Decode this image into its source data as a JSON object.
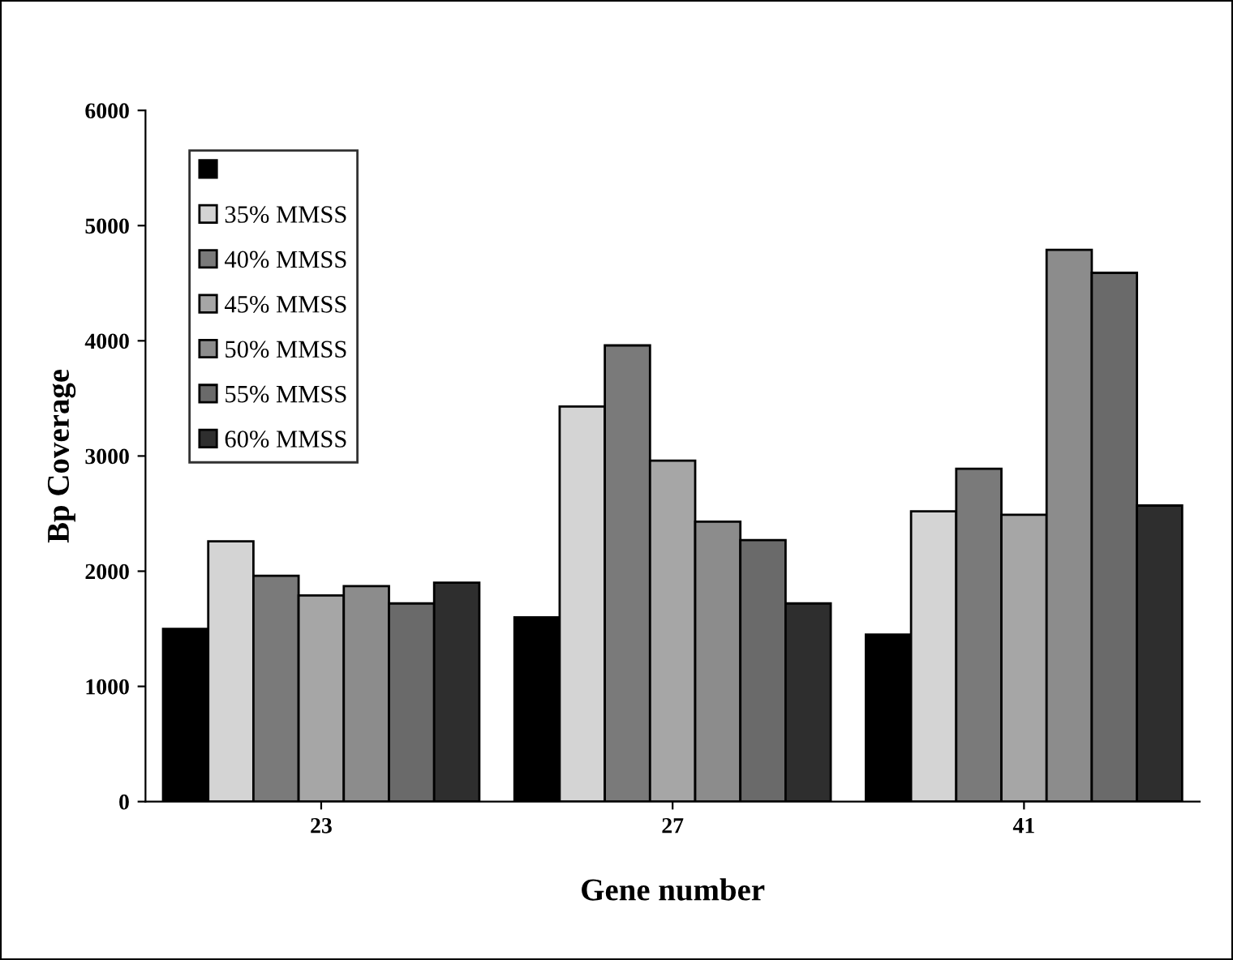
{
  "chart_data": {
    "type": "bar",
    "xlabel": "Gene number",
    "ylabel": "Bp Coverage",
    "categories": [
      "23",
      "27",
      "41"
    ],
    "series": [
      {
        "color": "#000000",
        "values": [
          1500,
          1600,
          1450
        ]
      },
      {
        "name": "35% MMSS",
        "color": "#d4d4d4",
        "values": [
          2260,
          3430,
          2520
        ]
      },
      {
        "name": "40% MMSS",
        "color": "#7a7a7a",
        "values": [
          1960,
          3960,
          2890
        ]
      },
      {
        "name": "45% MMSS",
        "color": "#a6a6a6",
        "values": [
          1790,
          2960,
          2490
        ]
      },
      {
        "name": "50% MMSS",
        "color": "#8c8c8c",
        "values": [
          1870,
          2430,
          4790
        ]
      },
      {
        "name": "55% MMSS",
        "color": "#6a6a6a",
        "values": [
          1720,
          2270,
          4590
        ]
      },
      {
        "name": "60% MMSS",
        "color": "#2e2e2e",
        "values": [
          1900,
          1720,
          2570
        ]
      }
    ],
    "ylim": [
      0,
      6000
    ],
    "yticks": [
      0,
      1000,
      2000,
      3000,
      4000,
      5000,
      6000
    ],
    "grid": false,
    "legend": "top left"
  }
}
